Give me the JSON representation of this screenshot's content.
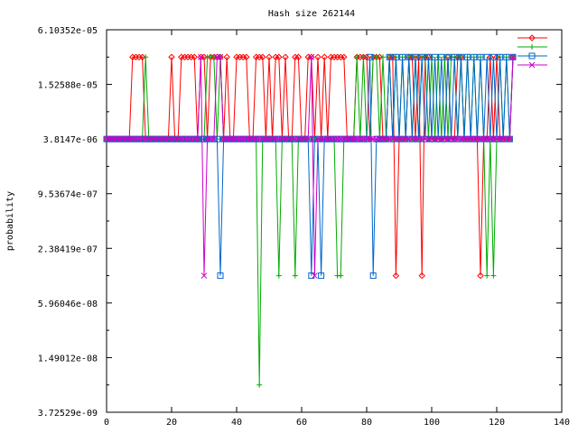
{
  "chart_data": {
    "type": "line",
    "title": "Hash size 262144",
    "xlabel": "",
    "ylabel": "probability",
    "xlim": [
      0,
      140
    ],
    "x_ticks": [
      0,
      20,
      40,
      60,
      80,
      100,
      120,
      140
    ],
    "y_scale": "log",
    "ylim": [
      3.72529e-09,
      6.10352e-05
    ],
    "y_ticks": [
      {
        "value": 6.10352e-05,
        "label": "6.10352e-05"
      },
      {
        "value": 1.52588e-05,
        "label": "1.52588e-05"
      },
      {
        "value": 3.8147e-06,
        "label": "3.8147e-06"
      },
      {
        "value": 9.53674e-07,
        "label": "9.53674e-07"
      },
      {
        "value": 2.38419e-07,
        "label": "2.38419e-07"
      },
      {
        "value": 5.96046e-08,
        "label": "5.96046e-08"
      },
      {
        "value": 1.49012e-08,
        "label": "1.49012e-08"
      },
      {
        "value": 3.72529e-09,
        "label": "3.72529e-09"
      }
    ],
    "grid": false,
    "legend_position": "top-right",
    "levels": {
      "high": 3.05176e-05,
      "mid": 3.8147e-06,
      "low": 1.19209e-07,
      "lowest": 7.45058e-09
    },
    "series": [
      {
        "name": "",
        "color": "#ff0000",
        "marker": "diamond",
        "x_range": [
          0,
          125
        ],
        "baseline": "high",
        "mid_x": [
          0,
          1,
          2,
          3,
          4,
          5,
          6,
          7,
          12,
          13,
          14,
          15,
          16,
          17,
          18,
          19,
          21,
          22,
          28,
          31,
          36,
          38,
          39,
          44,
          45,
          49,
          51,
          54,
          56,
          57,
          60,
          61,
          64,
          66,
          68,
          74,
          75,
          76,
          81,
          85,
          86,
          90,
          91,
          92,
          95,
          100,
          101,
          102,
          103,
          104,
          106,
          107,
          110,
          111,
          112,
          113,
          114,
          116,
          117,
          119,
          121,
          122,
          123,
          124
        ],
        "low_x": [
          89,
          97,
          115
        ],
        "lowest_x": []
      },
      {
        "name": "",
        "color": "#00aa00",
        "marker": "plus",
        "x_range": [
          0,
          125
        ],
        "baseline": "high",
        "mid_x": [
          0,
          1,
          2,
          3,
          4,
          5,
          6,
          7,
          8,
          9,
          10,
          11,
          13,
          14,
          15,
          16,
          17,
          18,
          19,
          20,
          21,
          22,
          23,
          24,
          25,
          26,
          27,
          28,
          29,
          30,
          34,
          36,
          37,
          38,
          39,
          40,
          41,
          42,
          43,
          44,
          45,
          46,
          48,
          49,
          50,
          51,
          52,
          54,
          55,
          56,
          57,
          58,
          59,
          60,
          61,
          62,
          63,
          64,
          65,
          66,
          67,
          68,
          69,
          70,
          73,
          74,
          75,
          76,
          78,
          80,
          81,
          84,
          86,
          88,
          90,
          92,
          94,
          96,
          99,
          101,
          103,
          105,
          108,
          110,
          112,
          114,
          116,
          118,
          120,
          122,
          124
        ],
        "low_x": [
          53,
          58,
          71,
          72,
          117,
          119
        ],
        "lowest_x": [
          47
        ]
      },
      {
        "name": "",
        "color": "#0066cc",
        "marker": "square",
        "x_range": [
          0,
          125
        ],
        "baseline": "high",
        "mid_x": [
          0,
          1,
          2,
          3,
          4,
          5,
          6,
          7,
          8,
          9,
          10,
          11,
          12,
          13,
          14,
          15,
          16,
          17,
          18,
          19,
          20,
          21,
          22,
          23,
          24,
          25,
          26,
          27,
          28,
          29,
          30,
          31,
          32,
          33,
          34,
          36,
          37,
          38,
          39,
          40,
          41,
          42,
          43,
          44,
          45,
          46,
          47,
          48,
          49,
          50,
          51,
          52,
          53,
          54,
          55,
          56,
          57,
          58,
          59,
          60,
          61,
          62,
          63,
          64,
          65,
          67,
          68,
          69,
          70,
          71,
          72,
          73,
          74,
          75,
          76,
          77,
          78,
          79,
          80,
          83,
          84,
          85,
          86,
          88,
          90,
          92,
          94,
          96,
          98,
          100,
          102,
          104,
          106,
          108,
          110,
          112,
          114,
          116,
          118,
          120,
          122,
          124
        ],
        "low_x": [
          35,
          63,
          66,
          82
        ],
        "lowest_x": []
      },
      {
        "name": "",
        "color": "#cc00cc",
        "marker": "x",
        "x_range": [
          0,
          125
        ],
        "baseline": "high",
        "mid_x": [
          0,
          1,
          2,
          3,
          4,
          5,
          6,
          7,
          8,
          9,
          10,
          11,
          12,
          13,
          14,
          15,
          16,
          17,
          18,
          19,
          20,
          21,
          22,
          23,
          24,
          25,
          26,
          27,
          28,
          31,
          32,
          33,
          36,
          37,
          38,
          39,
          40,
          41,
          42,
          43,
          44,
          45,
          46,
          47,
          48,
          49,
          50,
          51,
          52,
          53,
          54,
          55,
          56,
          57,
          58,
          59,
          60,
          61,
          62,
          64,
          65,
          66,
          67,
          68,
          69,
          70,
          71,
          72,
          73,
          74,
          75,
          76,
          77,
          78,
          79,
          80,
          81,
          82,
          83,
          84,
          85,
          86,
          87,
          88,
          89,
          90,
          91,
          92,
          93,
          94,
          95,
          96,
          97,
          98,
          99,
          100,
          101,
          102,
          103,
          104,
          105,
          106,
          107,
          108,
          109,
          110,
          111,
          112,
          113,
          114,
          115,
          116,
          117,
          118,
          119,
          120,
          121,
          122,
          123,
          124
        ],
        "low_x": [
          30,
          64
        ],
        "lowest_x": []
      }
    ]
  }
}
